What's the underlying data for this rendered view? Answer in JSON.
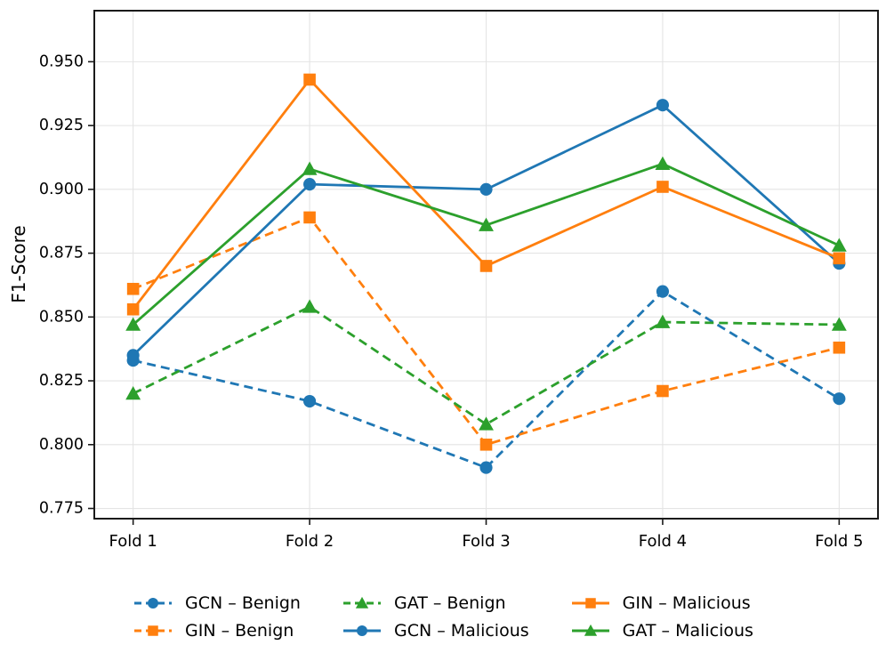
{
  "chart_data": {
    "type": "line",
    "title": "",
    "xlabel": "",
    "ylabel": "F1-Score",
    "categories": [
      "Fold 1",
      "Fold 2",
      "Fold 3",
      "Fold 4",
      "Fold 5"
    ],
    "x": [
      1,
      2,
      3,
      4,
      5
    ],
    "xlim": [
      0.78,
      5.22
    ],
    "ylim": [
      0.771,
      0.97
    ],
    "yticks": [
      0.775,
      0.8,
      0.825,
      0.85,
      0.875,
      0.9,
      0.925,
      0.95
    ],
    "ytick_labels": [
      "0.775",
      "0.800",
      "0.825",
      "0.850",
      "0.875",
      "0.900",
      "0.925",
      "0.950"
    ],
    "grid": true,
    "grid_color": "#e4e4e4",
    "spine_color": "#1a1a1a",
    "background": "#ffffff",
    "legend_position": "bottom-center",
    "legend_rows": 2,
    "legend_columns": 3,
    "series": [
      {
        "name": "GCN – Benign",
        "color": "#1f77b4",
        "line_style": "dashed",
        "marker": "circle",
        "values": [
          0.833,
          0.817,
          0.791,
          0.86,
          0.818
        ]
      },
      {
        "name": "GIN – Benign",
        "color": "#ff7f0e",
        "line_style": "dashed",
        "marker": "square",
        "values": [
          0.861,
          0.889,
          0.8,
          0.821,
          0.838
        ]
      },
      {
        "name": "GAT – Benign",
        "color": "#2ca02c",
        "line_style": "dashed",
        "marker": "triangle",
        "values": [
          0.82,
          0.854,
          0.808,
          0.848,
          0.847
        ]
      },
      {
        "name": "GCN – Malicious",
        "color": "#1f77b4",
        "line_style": "solid",
        "marker": "circle",
        "values": [
          0.835,
          0.902,
          0.9,
          0.933,
          0.871
        ]
      },
      {
        "name": "GIN – Malicious",
        "color": "#ff7f0e",
        "line_style": "solid",
        "marker": "square",
        "values": [
          0.853,
          0.943,
          0.87,
          0.901,
          0.873
        ]
      },
      {
        "name": "GAT – Malicious",
        "color": "#2ca02c",
        "line_style": "solid",
        "marker": "triangle",
        "values": [
          0.847,
          0.908,
          0.886,
          0.91,
          0.878
        ]
      }
    ]
  }
}
